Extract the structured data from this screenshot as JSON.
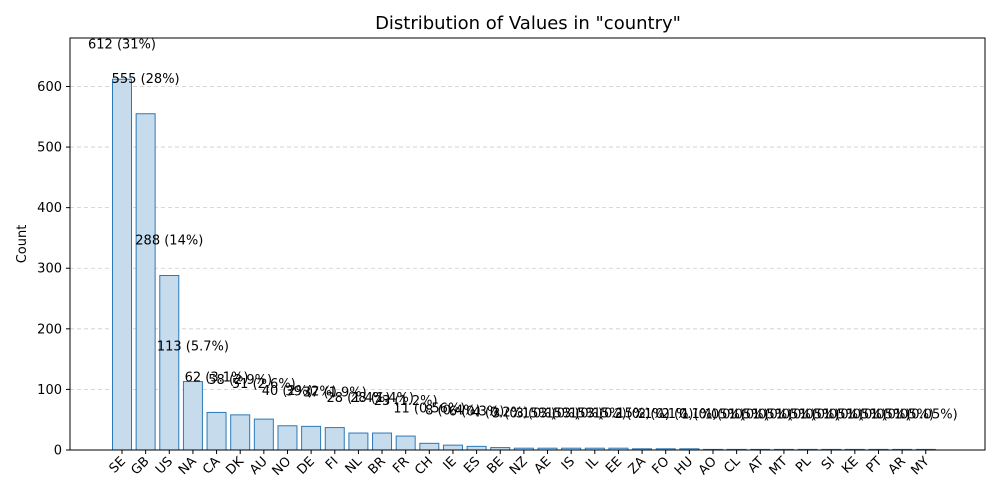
{
  "chart_data": {
    "type": "bar",
    "title": "Distribution of Values in \"country\"",
    "xlabel": "",
    "ylabel": "Count",
    "ylim": [
      0,
      680
    ],
    "yticks": [
      0,
      100,
      200,
      300,
      400,
      500,
      600
    ],
    "grid": true,
    "categories": [
      "SE",
      "GB",
      "US",
      "NA",
      "CA",
      "DK",
      "AU",
      "NO",
      "DE",
      "FI",
      "NL",
      "BR",
      "FR",
      "CH",
      "IE",
      "ES",
      "BE",
      "NZ",
      "AE",
      "IS",
      "IL",
      "EE",
      "ZA",
      "FO",
      "HU",
      "AO",
      "CL",
      "AT",
      "MT",
      "PL",
      "SI",
      "KE",
      "PT",
      "AR",
      "MY"
    ],
    "values": [
      612,
      555,
      288,
      113,
      62,
      58,
      51,
      40,
      39,
      37,
      28,
      28,
      23,
      11,
      8,
      6,
      4,
      3,
      3,
      3,
      3,
      3,
      2,
      2,
      2,
      1,
      1,
      1,
      1,
      1,
      1,
      1,
      1,
      1,
      1
    ],
    "labels": [
      "612 (31%)",
      "555 (28%)",
      "288 (14%)",
      "113 (5.7%)",
      "62 (3.1%)",
      "58 (2.9%)",
      "51 (2.6%)",
      "40 (2%)",
      "39 (2%)",
      "37 (1.9%)",
      "28 (1.4%)",
      "28 (1.4%)",
      "23 (1.2%)",
      "11 (0.56%)",
      "8 (0.4%)",
      "6 (0.3%)",
      "4 (0.2%)",
      "3 (0.15%)",
      "3 (0.15%)",
      "3 (0.15%)",
      "3 (0.15%)",
      "3 (0.15%)",
      "2 (0.1%)",
      "2 (0.1%)",
      "2 (0.1%)",
      "1 (0.05%)",
      "1 (0.05%)",
      "1 (0.05%)",
      "1 (0.05%)",
      "1 (0.05%)",
      "1 (0.05%)",
      "1 (0.05%)",
      "1 (0.05%)",
      "1 (0.05%)",
      "1 (0.05%)"
    ],
    "bar_fill": "#c6dbec",
    "bar_edge": "#2a7ab9",
    "grid_color": "#cccccc"
  }
}
